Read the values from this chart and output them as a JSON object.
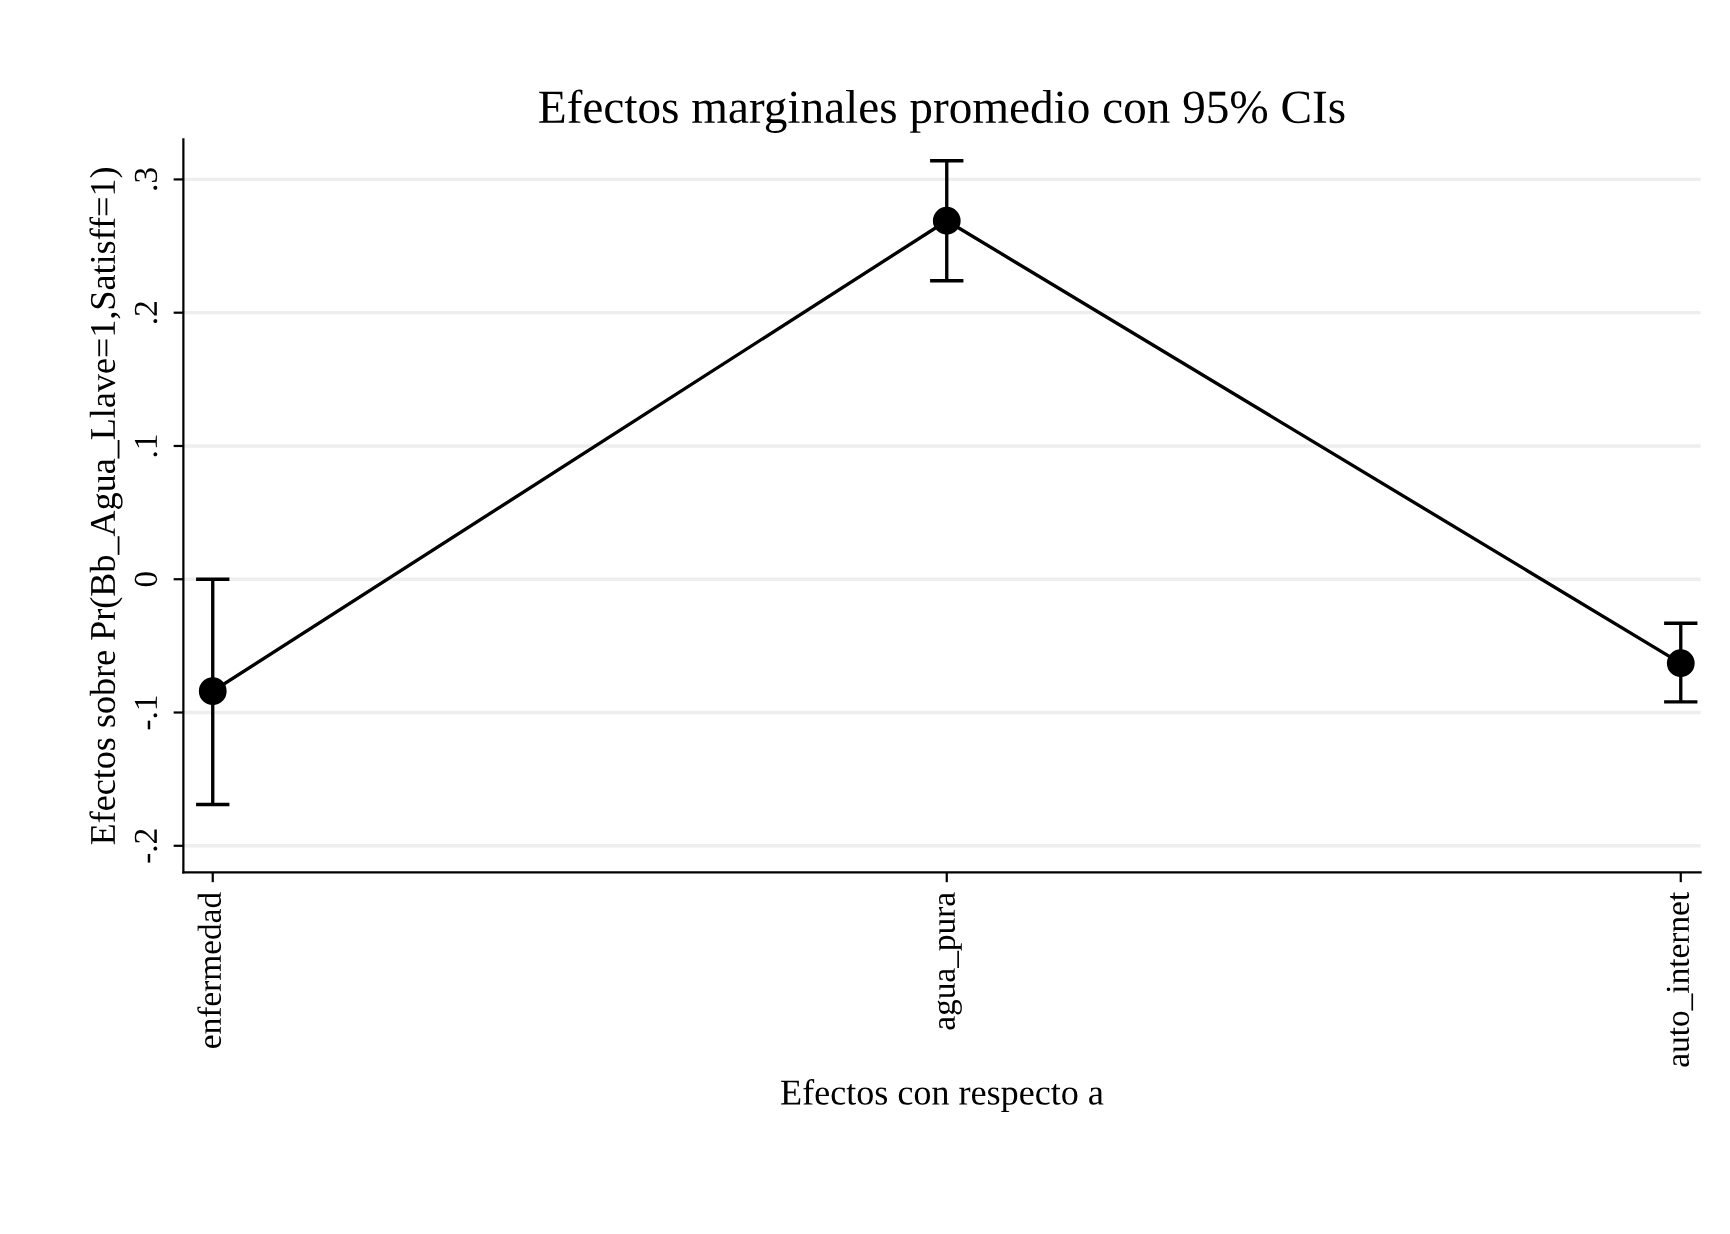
{
  "chart_data": {
    "type": "line",
    "title": "Efectos marginales promedio con 95% CIs",
    "xlabel": "Efectos con respecto a",
    "ylabel": "Efectos sobre Pr(Bb_Agua_Llave=1,Satisff=1)",
    "categories": [
      "enfermedad",
      "agua_pura",
      "auto_internet"
    ],
    "series": [
      {
        "color": "#000000",
        "values": [
          -0.084,
          0.269,
          -0.063
        ],
        "errors": [
          [
            -0.169,
            0.0
          ],
          [
            0.224,
            0.314
          ],
          [
            -0.092,
            -0.033
          ]
        ]
      }
    ],
    "ylim": [
      -0.22,
      0.33
    ],
    "yticks": [
      {
        "value": -0.2,
        "label": "-.2"
      },
      {
        "value": -0.1,
        "label": "-.1"
      },
      0,
      {
        "value": 0.1,
        "label": ".1"
      },
      {
        "value": 0.2,
        "label": ".2"
      },
      {
        "value": 0.3,
        "label": ".3"
      }
    ],
    "grid": "y",
    "marker": "circle",
    "line_style": "solid",
    "legend": false
  }
}
